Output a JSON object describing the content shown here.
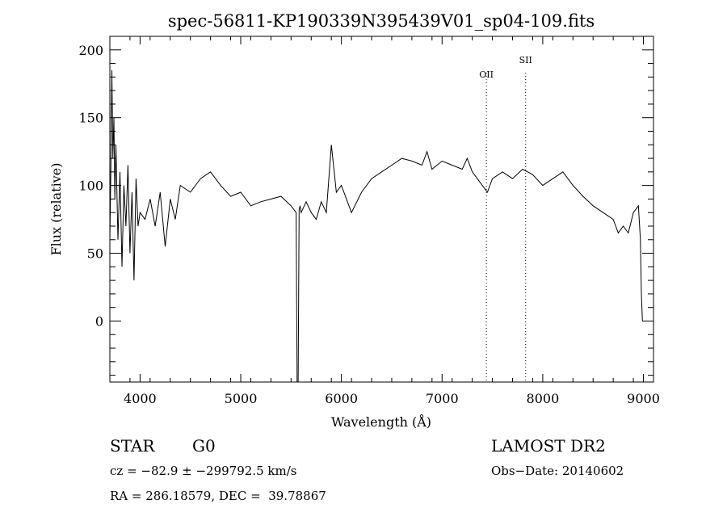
{
  "chart_data": {
    "type": "line",
    "title": "spec-56811-KP190339N395439V01_sp04-109.fits",
    "xlabel": "Wavelength (Å)",
    "ylabel": "Flux (relative)",
    "xlim": [
      3700,
      9100
    ],
    "ylim": [
      -45,
      210
    ],
    "xticks": [
      4000,
      5000,
      6000,
      7000,
      8000,
      9000
    ],
    "xtick_labels": [
      "4000",
      "5000",
      "6000",
      "7000",
      "8000",
      "9000"
    ],
    "yticks": [
      0,
      50,
      100,
      150,
      200
    ],
    "ytick_labels": [
      "0",
      "50",
      "100",
      "150",
      "200"
    ],
    "grid": false,
    "line_color": "#000000",
    "series": [
      {
        "name": "",
        "x": [
          3700,
          3710,
          3720,
          3730,
          3740,
          3750,
          3760,
          3780,
          3800,
          3820,
          3840,
          3860,
          3880,
          3900,
          3920,
          3940,
          3960,
          3980,
          4000,
          4050,
          4100,
          4150,
          4200,
          4250,
          4300,
          4350,
          4400,
          4500,
          4600,
          4700,
          4800,
          4900,
          5000,
          5100,
          5200,
          5300,
          5400,
          5500,
          5550,
          5560,
          5570,
          5580,
          5590,
          5600,
          5650,
          5700,
          5750,
          5800,
          5850,
          5880,
          5900,
          5950,
          6000,
          6050,
          6100,
          6200,
          6300,
          6400,
          6500,
          6600,
          6700,
          6800,
          6850,
          6900,
          7000,
          7100,
          7200,
          7250,
          7300,
          7400,
          7450,
          7500,
          7600,
          7700,
          7800,
          7900,
          8000,
          8100,
          8200,
          8300,
          8400,
          8500,
          8600,
          8700,
          8750,
          8800,
          8850,
          8900,
          8950,
          8970,
          8980,
          8990
        ],
        "y": [
          60,
          110,
          185,
          120,
          150,
          90,
          130,
          60,
          110,
          40,
          100,
          70,
          115,
          50,
          95,
          30,
          105,
          70,
          80,
          75,
          90,
          70,
          95,
          55,
          90,
          75,
          100,
          95,
          105,
          110,
          100,
          92,
          95,
          85,
          88,
          90,
          92,
          85,
          80,
          -45,
          -45,
          82,
          85,
          80,
          88,
          80,
          75,
          88,
          80,
          110,
          130,
          95,
          100,
          90,
          80,
          95,
          105,
          110,
          115,
          120,
          118,
          115,
          125,
          112,
          118,
          115,
          112,
          120,
          110,
          100,
          95,
          105,
          110,
          105,
          112,
          108,
          100,
          105,
          110,
          100,
          92,
          85,
          80,
          75,
          65,
          70,
          65,
          80,
          85,
          60,
          20,
          0
        ]
      }
    ],
    "annotations": [
      {
        "label": "OII",
        "x": 7440
      },
      {
        "label": "SII",
        "x": 7830
      }
    ]
  },
  "info": {
    "object_type": "STAR",
    "subclass": "G0",
    "survey": "LAMOST DR2",
    "cz": "cz = −82.9 ± −299792.5 km/s",
    "obs_date": "Obs−Date: 20140602",
    "coords": "RA = 286.18579, DEC =  39.78867"
  }
}
